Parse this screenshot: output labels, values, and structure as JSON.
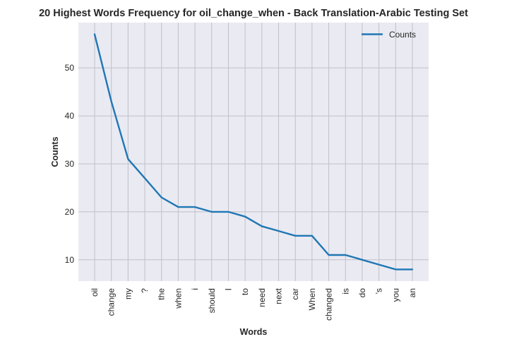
{
  "chart_data": {
    "type": "line",
    "title": "20 Highest Words Frequency for oil_change_when - Back Translation-Arabic Testing Set",
    "xlabel": "Words",
    "ylabel": "Counts",
    "categories": [
      "oil",
      "change",
      "my",
      "?",
      "the",
      "when",
      "i",
      "should",
      "I",
      "to",
      "need",
      "next",
      "car",
      "When",
      "changed",
      "is",
      "do",
      "'s",
      "you",
      "an"
    ],
    "series": [
      {
        "name": "Counts",
        "values": [
          57,
          43,
          31,
          27,
          23,
          21,
          21,
          20,
          20,
          19,
          17,
          16,
          15,
          15,
          11,
          11,
          10,
          9,
          8,
          8
        ]
      }
    ],
    "yticks": [
      10,
      20,
      30,
      40,
      50
    ],
    "ylim": [
      5.55,
      59.45
    ],
    "grid": true,
    "legend_position": "top-right",
    "colors": {
      "line": "#1f77b4",
      "background": "#eaeaf2",
      "grid": "#c0c0c8"
    }
  }
}
